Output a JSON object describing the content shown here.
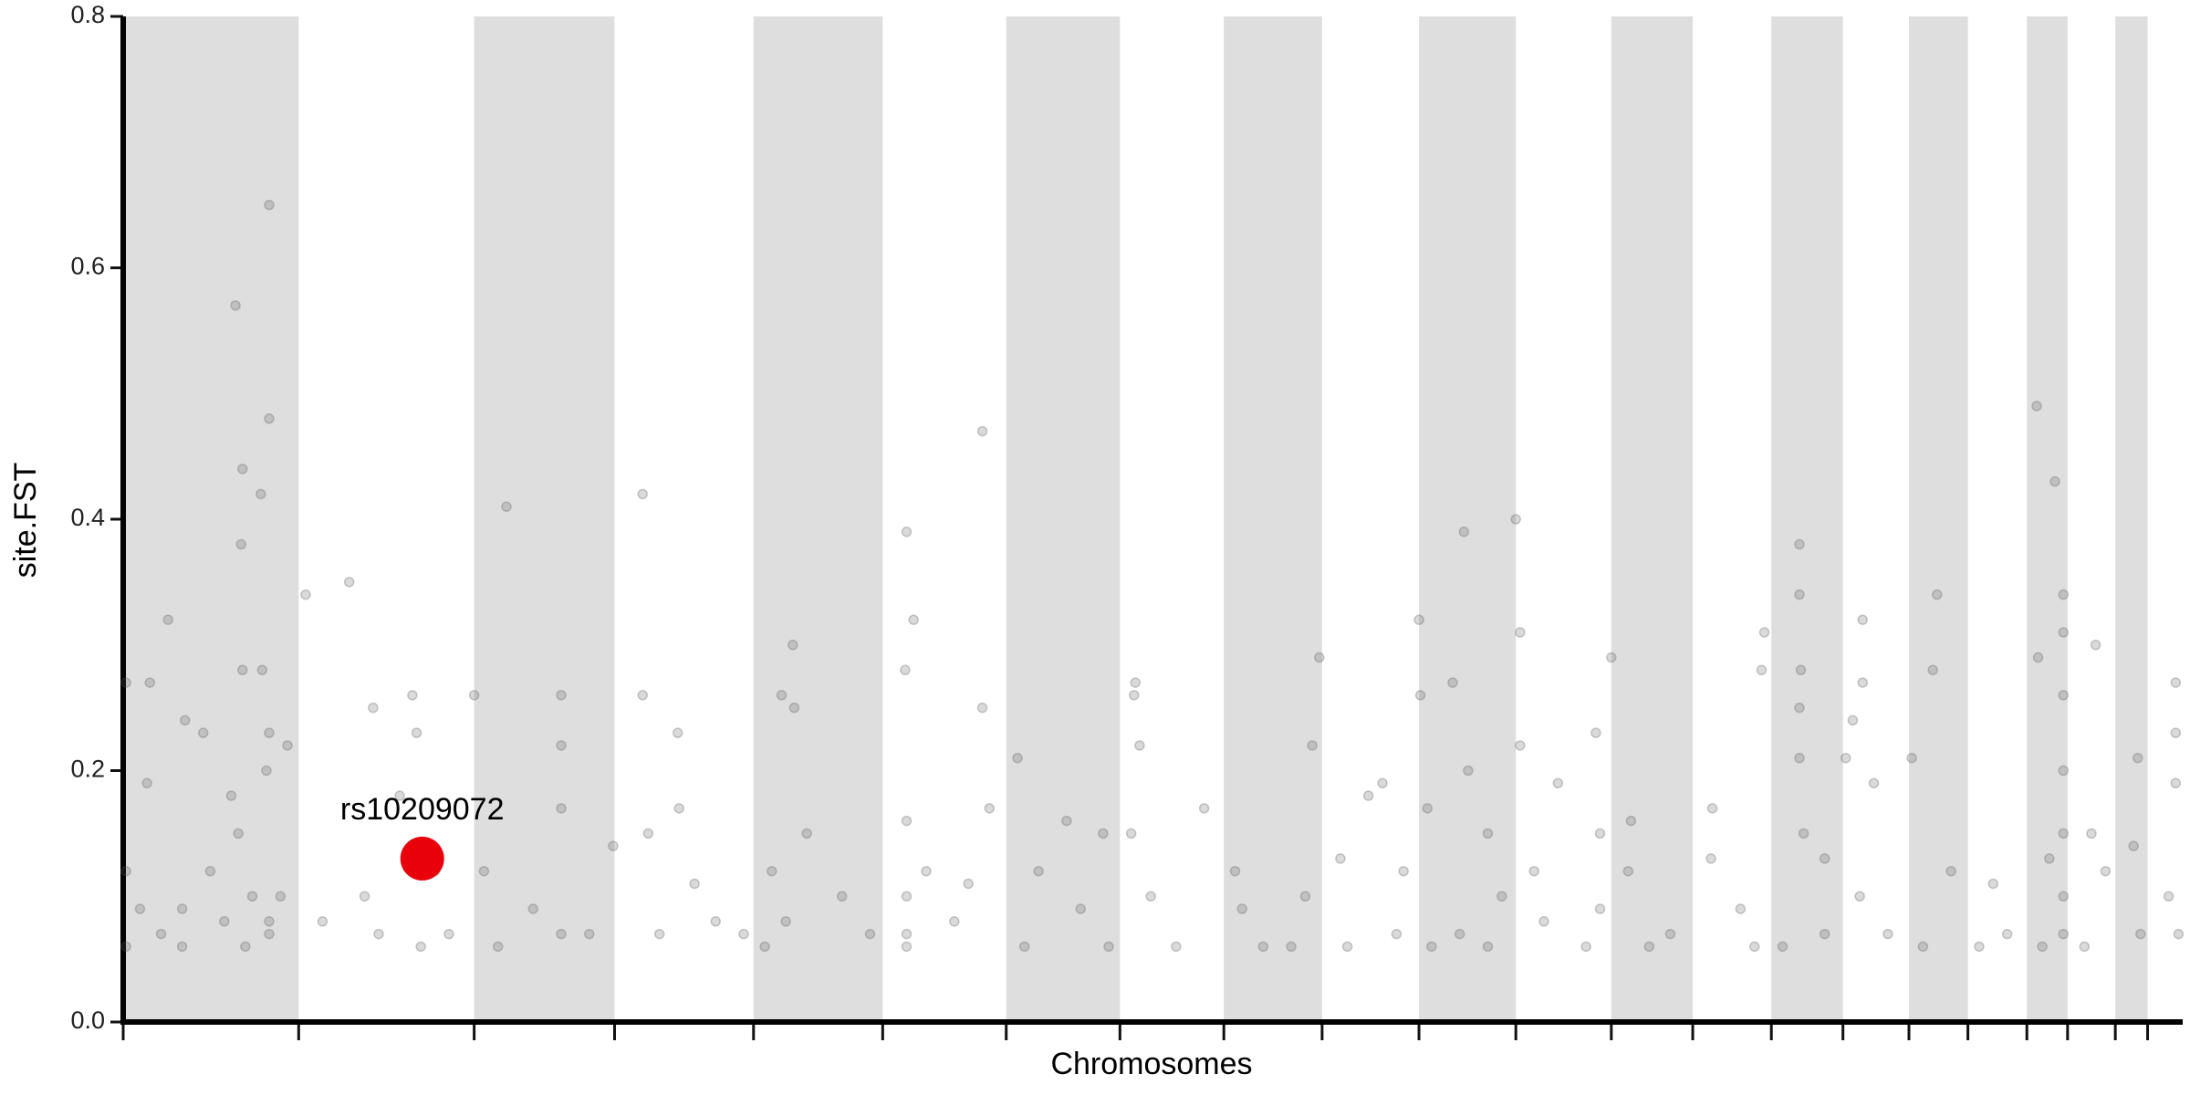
{
  "chart_data": {
    "type": "scatter",
    "x_label": "Chromosomes",
    "y_label": "site.FST",
    "xlim": [
      88,
      1555
    ],
    "ylim": [
      0,
      0.8
    ],
    "xticks": [
      88,
      213,
      338,
      438,
      537,
      629,
      717,
      798,
      872,
      942,
      1011,
      1080,
      1148,
      1206,
      1262,
      1313,
      1360,
      1402,
      1444,
      1473,
      1507,
      1530
    ],
    "yticks": [
      {
        "value": 0,
        "label": "0.0"
      },
      0.2,
      0.4,
      0.6,
      0.8
    ],
    "shade_alternate": true,
    "band_color": "#dedede",
    "point_color": "#555555",
    "x": [
      90,
      90,
      90,
      105,
      107,
      120,
      132,
      145,
      168,
      173,
      172,
      173,
      186,
      187,
      192,
      192,
      192,
      190,
      165,
      170,
      180,
      192,
      192,
      130,
      130,
      100,
      115,
      205,
      200,
      160,
      175,
      150,
      218,
      249,
      266,
      230,
      270,
      294,
      297,
      285,
      310,
      320,
      338,
      260,
      300,
      361,
      400,
      400,
      400,
      345,
      355,
      380,
      420,
      400,
      437,
      458,
      458,
      483,
      484,
      470,
      495,
      510,
      530,
      462,
      565,
      557,
      566,
      550,
      560,
      575,
      600,
      620,
      545,
      646,
      651,
      645,
      646,
      646,
      646,
      646,
      660,
      700,
      700,
      705,
      690,
      680,
      725,
      740,
      760,
      770,
      786,
      790,
      730,
      809,
      808,
      812,
      806,
      820,
      858,
      838,
      880,
      885,
      900,
      935,
      940,
      930,
      920,
      955,
      975,
      985,
      1000,
      995,
      960,
      1011,
      1012,
      1017,
      1035,
      1043,
      1046,
      1060,
      1070,
      1040,
      1020,
      1060,
      1080,
      1083,
      1083,
      1093,
      1110,
      1100,
      1137,
      1140,
      1140,
      1130,
      1148,
      1162,
      1160,
      1190,
      1175,
      1220,
      1219,
      1240,
      1255,
      1257,
      1250,
      1282,
      1282,
      1283,
      1282,
      1282,
      1285,
      1300,
      1300,
      1270,
      1315,
      1327,
      1327,
      1320,
      1335,
      1325,
      1345,
      1362,
      1380,
      1377,
      1390,
      1370,
      1420,
      1430,
      1410,
      1451,
      1464,
      1452,
      1470,
      1470,
      1470,
      1470,
      1470,
      1470,
      1470,
      1460,
      1455,
      1493,
      1490,
      1500,
      1485,
      1523,
      1520,
      1525,
      1550,
      1550,
      1550,
      1545,
      1552
    ],
    "values": [
      0.27,
      0.12,
      0.06,
      0.19,
      0.27,
      0.32,
      0.24,
      0.23,
      0.57,
      0.44,
      0.38,
      0.28,
      0.42,
      0.28,
      0.65,
      0.48,
      0.23,
      0.2,
      0.18,
      0.15,
      0.1,
      0.08,
      0.07,
      0.09,
      0.06,
      0.09,
      0.07,
      0.22,
      0.1,
      0.08,
      0.06,
      0.12,
      0.34,
      0.35,
      0.25,
      0.08,
      0.07,
      0.26,
      0.23,
      0.18,
      0.12,
      0.07,
      0.26,
      0.1,
      0.06,
      0.41,
      0.26,
      0.22,
      0.17,
      0.12,
      0.06,
      0.09,
      0.07,
      0.07,
      0.14,
      0.42,
      0.26,
      0.23,
      0.17,
      0.07,
      0.11,
      0.08,
      0.07,
      0.15,
      0.3,
      0.26,
      0.25,
      0.12,
      0.08,
      0.15,
      0.1,
      0.07,
      0.06,
      0.39,
      0.32,
      0.28,
      0.16,
      0.1,
      0.07,
      0.06,
      0.12,
      0.47,
      0.25,
      0.17,
      0.11,
      0.08,
      0.21,
      0.12,
      0.16,
      0.09,
      0.15,
      0.06,
      0.06,
      0.27,
      0.26,
      0.22,
      0.15,
      0.1,
      0.17,
      0.06,
      0.12,
      0.09,
      0.06,
      0.22,
      0.29,
      0.1,
      0.06,
      0.13,
      0.18,
      0.19,
      0.12,
      0.07,
      0.06,
      0.32,
      0.26,
      0.17,
      0.27,
      0.39,
      0.2,
      0.15,
      0.1,
      0.07,
      0.06,
      0.06,
      0.4,
      0.31,
      0.22,
      0.12,
      0.19,
      0.08,
      0.23,
      0.15,
      0.09,
      0.06,
      0.29,
      0.16,
      0.12,
      0.07,
      0.06,
      0.17,
      0.13,
      0.09,
      0.28,
      0.31,
      0.06,
      0.38,
      0.34,
      0.28,
      0.25,
      0.21,
      0.15,
      0.13,
      0.07,
      0.06,
      0.21,
      0.32,
      0.27,
      0.24,
      0.19,
      0.1,
      0.07,
      0.21,
      0.34,
      0.28,
      0.12,
      0.06,
      0.11,
      0.07,
      0.06,
      0.49,
      0.43,
      0.29,
      0.34,
      0.31,
      0.26,
      0.2,
      0.15,
      0.1,
      0.07,
      0.13,
      0.06,
      0.3,
      0.15,
      0.12,
      0.06,
      0.21,
      0.14,
      0.07,
      0.27,
      0.23,
      0.19,
      0.1,
      0.07
    ],
    "highlight": {
      "label": "rs10209072",
      "x": 301,
      "y": 0.13,
      "color": "#e8000b"
    }
  }
}
